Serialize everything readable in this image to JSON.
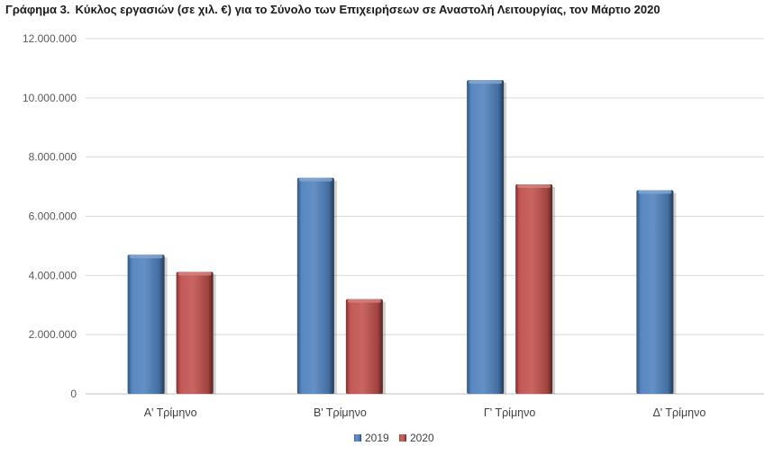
{
  "chart_data": {
    "type": "bar",
    "title_number": "Γράφημα 3.",
    "title": "Κύκλος εργασιών (σε χιλ. €) για το Σύνολο των Επιχειρήσεων σε Αναστολή Λειτουργίας, τον Μάρτιο 2020",
    "categories": [
      "Α' Τρίμηνο",
      "Β' Τρίμηνο",
      "Γ' Τρίμηνο",
      "Δ' Τρίμηνο"
    ],
    "series": [
      {
        "name": "2019",
        "values": [
          4700000,
          7300000,
          10600000,
          6880000
        ],
        "color": "#4f81bd"
      },
      {
        "name": "2020",
        "values": [
          4120000,
          3200000,
          7080000,
          null
        ],
        "color": "#c0504d"
      }
    ],
    "ylim": [
      0,
      12000000
    ],
    "yticks": [
      0,
      2000000,
      4000000,
      6000000,
      8000000,
      10000000,
      12000000
    ],
    "ytick_labels": [
      "0",
      "2.000.000",
      "4.000.000",
      "6.000.000",
      "8.000.000",
      "10.000.000",
      "12.000.000"
    ],
    "grid": true,
    "legend_position": "bottom"
  }
}
